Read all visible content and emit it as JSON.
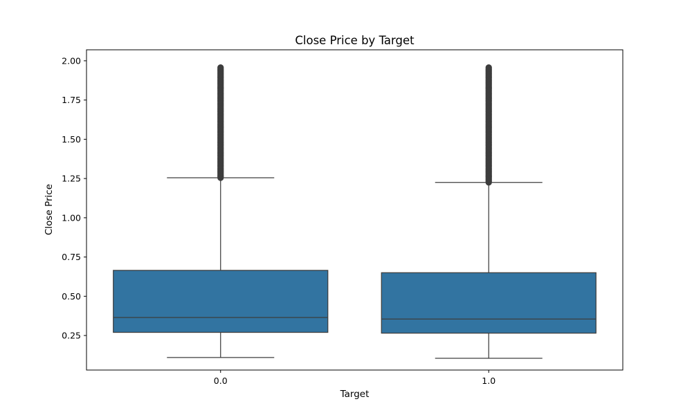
{
  "chart_data": {
    "type": "box",
    "title": "Close Price by Target",
    "xlabel": "Target",
    "ylabel": "Close Price",
    "ylim": [
      0.03,
      2.07
    ],
    "yticks": [
      "0.25",
      "0.50",
      "0.75",
      "1.00",
      "1.25",
      "1.50",
      "1.75",
      "2.00"
    ],
    "categories": [
      "0.0",
      "1.0"
    ],
    "boxes": [
      {
        "category": "0.0",
        "whisker_low": 0.11,
        "q1": 0.27,
        "median": 0.365,
        "q3": 0.665,
        "whisker_high": 1.255,
        "outliers_range": [
          1.255,
          1.96
        ]
      },
      {
        "category": "1.0",
        "whisker_low": 0.105,
        "q1": 0.265,
        "median": 0.355,
        "q3": 0.65,
        "whisker_high": 1.225,
        "outliers_range": [
          1.225,
          1.96
        ]
      }
    ],
    "grid": false,
    "legend": "none",
    "colors": {
      "box_fill": "#3274a1",
      "line": "#3d3d3d",
      "outlier": "#3d3d3d"
    }
  }
}
